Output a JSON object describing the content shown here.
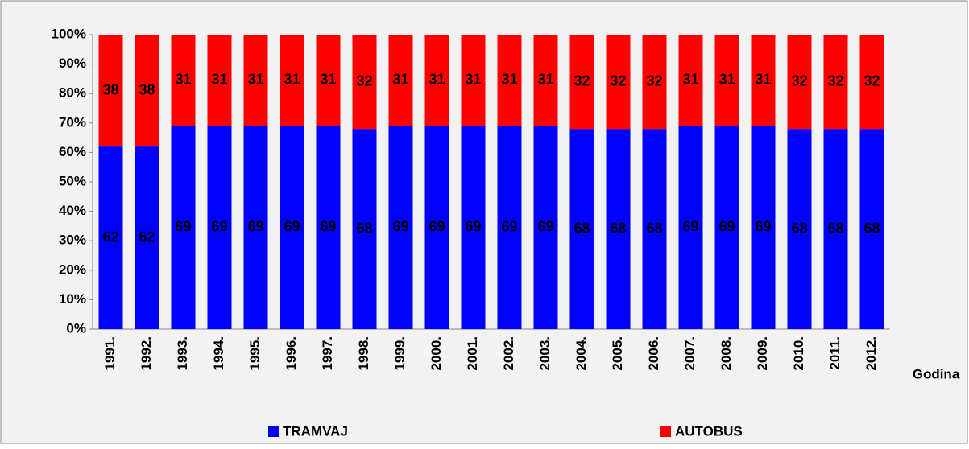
{
  "chart_data": {
    "type": "stacked_bar_100",
    "x_label": "Godina",
    "categories": [
      "1991.",
      "1992.",
      "1993.",
      "1994.",
      "1995.",
      "1996.",
      "1997.",
      "1998.",
      "1999.",
      "2000.",
      "2001.",
      "2002.",
      "2003.",
      "2004.",
      "2005.",
      "2006.",
      "2007.",
      "2008.",
      "2009.",
      "2010.",
      "2011.",
      "2012."
    ],
    "series": [
      {
        "name": "TRAMVAJ",
        "color": "#0000ff",
        "values": [
          62,
          62,
          69,
          69,
          69,
          69,
          69,
          68,
          69,
          69,
          69,
          69,
          69,
          68,
          68,
          68,
          69,
          69,
          69,
          68,
          68,
          68
        ]
      },
      {
        "name": "AUTOBUS",
        "color": "#ff0000",
        "values": [
          38,
          38,
          31,
          31,
          31,
          31,
          31,
          32,
          31,
          31,
          31,
          31,
          31,
          32,
          32,
          32,
          31,
          31,
          31,
          32,
          32,
          32
        ]
      }
    ],
    "ylim": [
      0,
      100
    ],
    "yticks": [
      {
        "value": 0,
        "label": "0%"
      },
      {
        "value": 10,
        "label": "10%"
      },
      {
        "value": 20,
        "label": "20%"
      },
      {
        "value": 30,
        "label": "30%"
      },
      {
        "value": 40,
        "label": "40%"
      },
      {
        "value": 50,
        "label": "50%"
      },
      {
        "value": 60,
        "label": "60%"
      },
      {
        "value": 70,
        "label": "70%"
      },
      {
        "value": 80,
        "label": "80%"
      },
      {
        "value": 90,
        "label": "90%"
      },
      {
        "value": 100,
        "label": "100%"
      }
    ],
    "legend": "bottom"
  }
}
